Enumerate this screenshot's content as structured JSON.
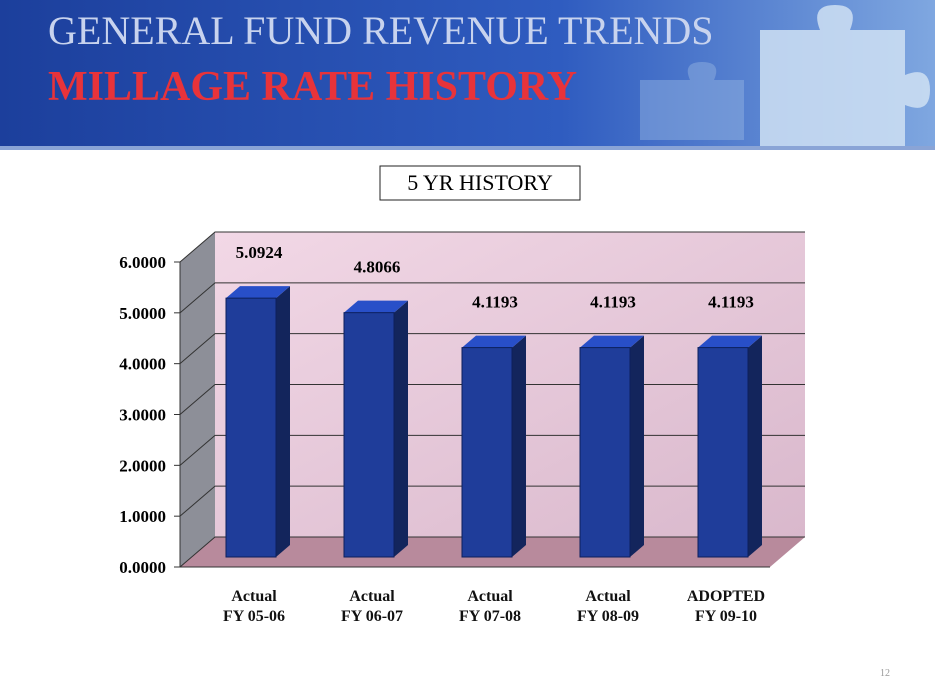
{
  "header": {
    "title": "GENERAL FUND REVENUE TRENDS",
    "subtitle": "MILLAGE RATE HISTORY"
  },
  "chart_data": {
    "type": "bar",
    "title": "5 YR HISTORY",
    "categories": [
      "Actual\nFY 05-06",
      "Actual\nFY 06-07",
      "Actual\nFY 07-08",
      "Actual\nFY 08-09",
      "ADOPTED\nFY 09-10"
    ],
    "values": [
      5.0924,
      4.8066,
      4.1193,
      4.1193,
      4.1193
    ],
    "color": "#1f3d9a",
    "ylim": [
      0,
      6
    ],
    "yticks": [
      {
        "value": 0,
        "label": "0.0000"
      },
      {
        "value": 1,
        "label": "1.0000"
      },
      {
        "value": 2,
        "label": "2.0000"
      },
      {
        "value": 3,
        "label": "3.0000"
      },
      {
        "value": 4,
        "label": "4.0000"
      },
      {
        "value": 5,
        "label": "5.0000"
      },
      {
        "value": 6,
        "label": "6.0000"
      }
    ],
    "grid": true
  },
  "footer": {
    "page_number": "12"
  }
}
